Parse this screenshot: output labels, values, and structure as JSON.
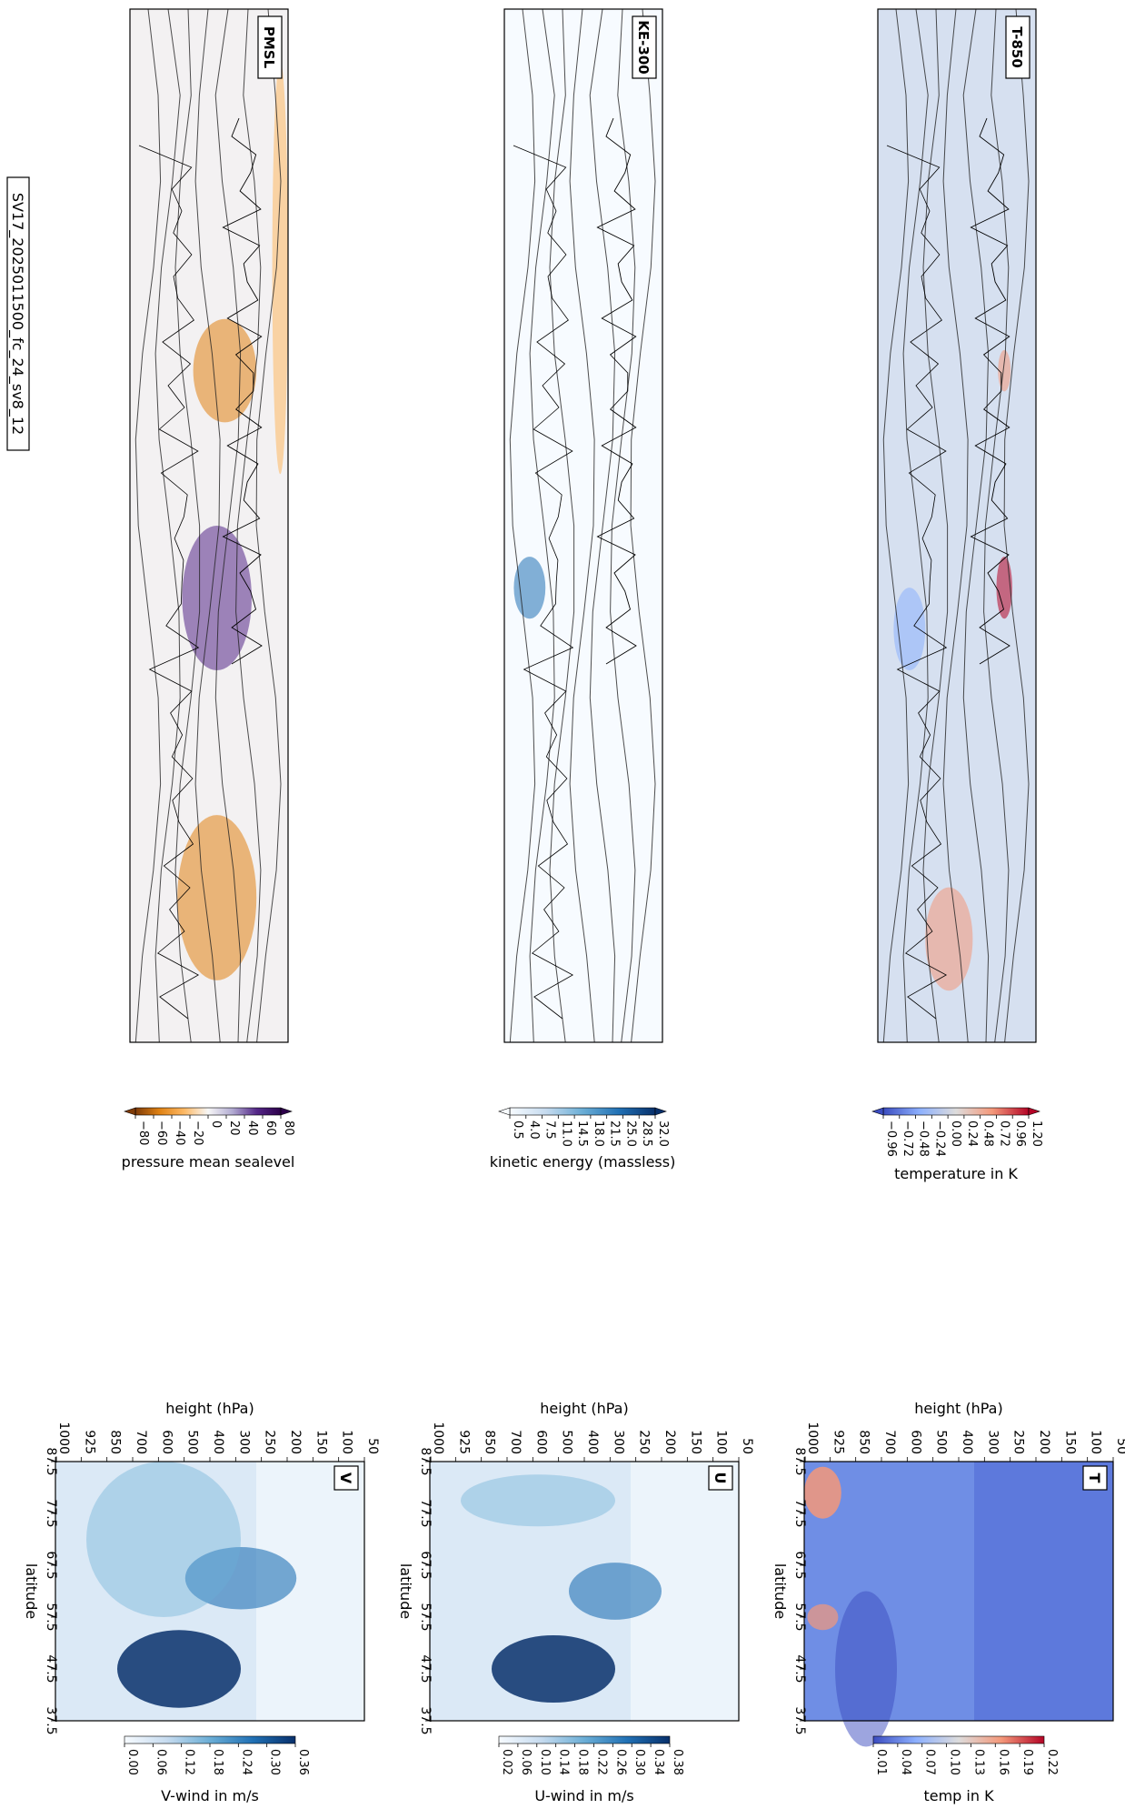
{
  "suptitle": "SV17_2025011500_fc_24_sv8_12",
  "chart_data": [
    {
      "type": "heatmap",
      "panel": "PMSL",
      "label": "PMSL",
      "colorbar": {
        "label": "pressure mean sealevel",
        "ticks": [
          "−80",
          "−60",
          "−40",
          "−20",
          "0",
          "20",
          "40",
          "60",
          "80"
        ],
        "colors": [
          "#7f3b08",
          "#e08214",
          "#fdb863",
          "#f7f7f7",
          "#b2abd2",
          "#542788",
          "#2d004b"
        ]
      }
    },
    {
      "type": "heatmap",
      "panel": "KE-300",
      "label": "KE-300",
      "colorbar": {
        "label": "kinetic energy (massless)",
        "ticks": [
          "0.5",
          "4.0",
          "7.5",
          "11.0",
          "14.5",
          "18.0",
          "21.5",
          "25.0",
          "28.5",
          "32.0"
        ],
        "colors": [
          "#f7fbff",
          "#c6dbef",
          "#6baed6",
          "#2171b5",
          "#08306b"
        ]
      }
    },
    {
      "type": "heatmap",
      "panel": "T-850",
      "label": "T-850",
      "colorbar": {
        "label": "temperature in K",
        "ticks": [
          "−0.96",
          "−0.72",
          "−0.48",
          "−0.24",
          "0.00",
          "0.24",
          "0.48",
          "0.72",
          "0.96",
          "1.20"
        ],
        "colors": [
          "#3b4cc0",
          "#8db0fe",
          "#dddcdc",
          "#f4987a",
          "#b40426"
        ]
      }
    },
    {
      "type": "heatmap",
      "panel": "V",
      "label": "V",
      "xlabel": "latitude",
      "ylabel": "height (hPa)",
      "x_ticks": [
        "87.5",
        "77.5",
        "67.5",
        "57.5",
        "47.5",
        "37.5"
      ],
      "y_ticks": [
        "1000",
        "925",
        "850",
        "700",
        "600",
        "500",
        "400",
        "300",
        "250",
        "200",
        "150",
        "100",
        "50"
      ],
      "colorbar": {
        "label": "V-wind in m/s",
        "ticks": [
          "0.00",
          "0.06",
          "0.12",
          "0.18",
          "0.24",
          "0.30",
          "0.36"
        ],
        "colors": [
          "#f7fbff",
          "#c6dbef",
          "#6baed6",
          "#2171b5",
          "#08306b"
        ]
      }
    },
    {
      "type": "heatmap",
      "panel": "U",
      "label": "U",
      "xlabel": "latitude",
      "ylabel": "height (hPa)",
      "x_ticks": [
        "87.5",
        "77.5",
        "67.5",
        "57.5",
        "47.5",
        "37.5"
      ],
      "y_ticks": [
        "1000",
        "925",
        "850",
        "700",
        "600",
        "500",
        "400",
        "300",
        "250",
        "200",
        "150",
        "100",
        "50"
      ],
      "colorbar": {
        "label": "U-wind in m/s",
        "ticks": [
          "0.02",
          "0.06",
          "0.10",
          "0.14",
          "0.18",
          "0.22",
          "0.26",
          "0.30",
          "0.34",
          "0.38"
        ],
        "colors": [
          "#f7fbff",
          "#c6dbef",
          "#6baed6",
          "#2171b5",
          "#08306b"
        ]
      }
    },
    {
      "type": "heatmap",
      "panel": "T",
      "label": "T",
      "xlabel": "latitude",
      "ylabel": "height (hPa)",
      "x_ticks": [
        "87.5",
        "77.5",
        "67.5",
        "57.5",
        "47.5",
        "37.5"
      ],
      "y_ticks": [
        "1000",
        "925",
        "850",
        "700",
        "600",
        "500",
        "400",
        "300",
        "250",
        "200",
        "150",
        "100",
        "50"
      ],
      "colorbar": {
        "label": "temp in K",
        "ticks": [
          "0.01",
          "0.04",
          "0.07",
          "0.10",
          "0.13",
          "0.16",
          "0.19",
          "0.22"
        ],
        "colors": [
          "#3b4cc0",
          "#8db0fe",
          "#dddcdc",
          "#f4987a",
          "#b40426"
        ]
      }
    }
  ]
}
